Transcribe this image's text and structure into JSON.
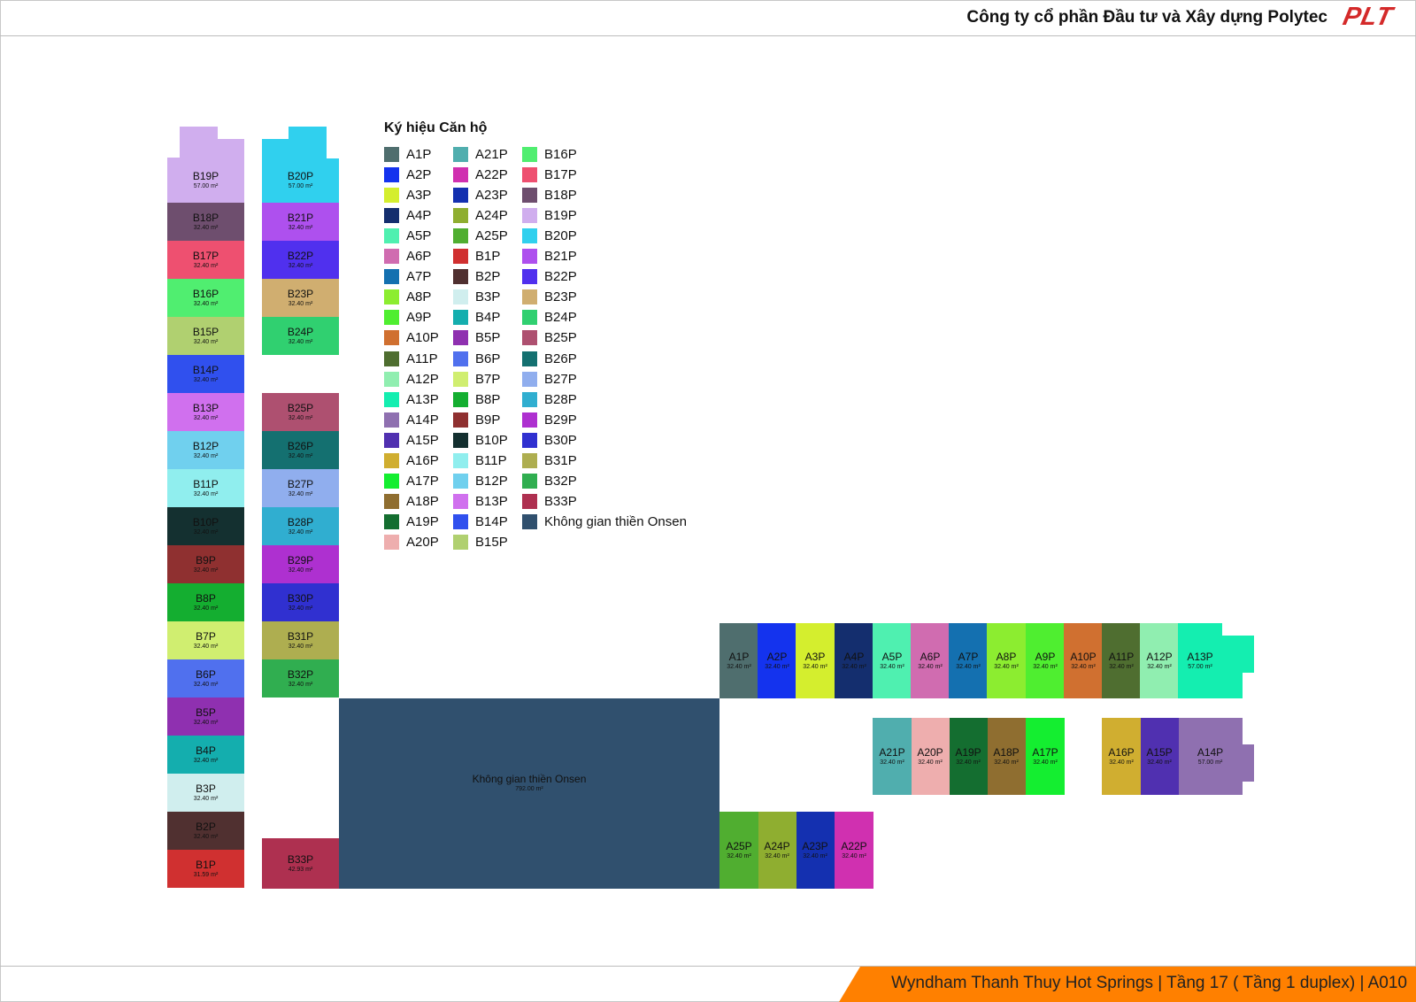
{
  "header": {
    "company": "Công ty cổ phần Đầu tư và Xây dựng Polytec",
    "logo": {
      "text": "PLT",
      "color": "#d42a2a"
    }
  },
  "footer": {
    "text": "Wyndham Thanh Thuy Hot Springs | Tầng 17 ( Tầng 1 duplex) | A010",
    "color": "#ff8000"
  },
  "legend": {
    "title": "Ký hiệu Căn hộ",
    "columns": [
      [
        "A1P",
        "A2P",
        "A3P",
        "A4P",
        "A5P",
        "A6P",
        "A7P",
        "A8P",
        "A9P",
        "A10P",
        "A11P",
        "A12P",
        "A13P",
        "A14P",
        "A15P",
        "A16P",
        "A17P",
        "A18P",
        "A19P",
        "A20P"
      ],
      [
        "A21P",
        "A22P",
        "A23P",
        "A24P",
        "A25P",
        "B1P",
        "B2P",
        "B3P",
        "B4P",
        "B5P",
        "B6P",
        "B7P",
        "B8P",
        "B9P",
        "B10P",
        "B11P",
        "B12P",
        "B13P",
        "B14P",
        "B15P"
      ],
      [
        "B16P",
        "B17P",
        "B18P",
        "B19P",
        "B20P",
        "B21P",
        "B22P",
        "B23P",
        "B24P",
        "B25P",
        "B26P",
        "B27P",
        "B28P",
        "B29P",
        "B30P",
        "B31P",
        "B32P",
        "B33P",
        "Không gian thiền Onsen"
      ]
    ]
  },
  "units": [
    {
      "name": "A1P",
      "area": "32.40 m²",
      "color": "#4f6e6e"
    },
    {
      "name": "A2P",
      "area": "32.40 m²",
      "color": "#1433ee"
    },
    {
      "name": "A3P",
      "area": "32.40 m²",
      "color": "#d4ee2e"
    },
    {
      "name": "A4P",
      "area": "32.40 m²",
      "color": "#142e6e"
    },
    {
      "name": "A5P",
      "area": "32.40 m²",
      "color": "#4ff0b0"
    },
    {
      "name": "A6P",
      "area": "32.40 m²",
      "color": "#d06cb0"
    },
    {
      "name": "A7P",
      "area": "32.40 m²",
      "color": "#1470b0"
    },
    {
      "name": "A8P",
      "area": "32.40 m²",
      "color": "#8ced30"
    },
    {
      "name": "A9P",
      "area": "32.40 m²",
      "color": "#4fee30"
    },
    {
      "name": "A10P",
      "area": "32.40 m²",
      "color": "#d07030"
    },
    {
      "name": "A11P",
      "area": "32.40 m²",
      "color": "#4f6e30"
    },
    {
      "name": "A12P",
      "area": "32.40 m²",
      "color": "#90eeb0"
    },
    {
      "name": "A13P",
      "area": "57.00 m²",
      "color": "#14eeb0"
    },
    {
      "name": "A14P",
      "area": "57.00 m²",
      "color": "#8f70b0"
    },
    {
      "name": "A15P",
      "area": "32.40 m²",
      "color": "#5030b0"
    },
    {
      "name": "A16P",
      "area": "32.40 m²",
      "color": "#d0ae30"
    },
    {
      "name": "A17P",
      "area": "32.40 m²",
      "color": "#14ee30"
    },
    {
      "name": "A18P",
      "area": "32.40 m²",
      "color": "#8f6e30"
    },
    {
      "name": "A19P",
      "area": "32.40 m²",
      "color": "#146e30"
    },
    {
      "name": "A20P",
      "area": "32.40 m²",
      "color": "#eeaeae"
    },
    {
      "name": "A21P",
      "area": "32.40 m²",
      "color": "#50aeae"
    },
    {
      "name": "A22P",
      "area": "32.40 m²",
      "color": "#d030b0"
    },
    {
      "name": "A23P",
      "area": "32.40 m²",
      "color": "#1430b0"
    },
    {
      "name": "A24P",
      "area": "32.40 m²",
      "color": "#8fae30"
    },
    {
      "name": "A25P",
      "area": "32.40 m²",
      "color": "#50ae30"
    },
    {
      "name": "B1P",
      "area": "31.59 m²",
      "color": "#d03030"
    },
    {
      "name": "B2P",
      "area": "32.40 m²",
      "color": "#503030"
    },
    {
      "name": "B3P",
      "area": "32.40 m²",
      "color": "#d0eeee"
    },
    {
      "name": "B4P",
      "area": "32.40 m²",
      "color": "#14aeae"
    },
    {
      "name": "B5P",
      "area": "32.40 m²",
      "color": "#8f30b0"
    },
    {
      "name": "B6P",
      "area": "32.40 m²",
      "color": "#5070ee"
    },
    {
      "name": "B7P",
      "area": "32.40 m²",
      "color": "#d0ee70"
    },
    {
      "name": "B8P",
      "area": "32.40 m²",
      "color": "#14ae30"
    },
    {
      "name": "B9P",
      "area": "32.40 m²",
      "color": "#8f3030"
    },
    {
      "name": "B10P",
      "area": "32.40 m²",
      "color": "#143030"
    },
    {
      "name": "B11P",
      "area": "32.40 m²",
      "color": "#90eeee"
    },
    {
      "name": "B12P",
      "area": "32.40 m²",
      "color": "#70d0ee"
    },
    {
      "name": "B13P",
      "area": "32.40 m²",
      "color": "#d070ee"
    },
    {
      "name": "B14P",
      "area": "32.40 m²",
      "color": "#3050ee"
    },
    {
      "name": "B15P",
      "area": "32.40 m²",
      "color": "#b0d070"
    },
    {
      "name": "B16P",
      "area": "32.40 m²",
      "color": "#50ee70"
    },
    {
      "name": "B17P",
      "area": "32.40 m²",
      "color": "#ee5070"
    },
    {
      "name": "B18P",
      "area": "32.40 m²",
      "color": "#6e4e6e"
    },
    {
      "name": "B19P",
      "area": "57.00 m²",
      "color": "#d0aeee"
    },
    {
      "name": "B20P",
      "area": "57.00 m²",
      "color": "#30d0ee"
    },
    {
      "name": "B21P",
      "area": "32.40 m²",
      "color": "#ae50ee"
    },
    {
      "name": "B22P",
      "area": "32.40 m²",
      "color": "#5030ee"
    },
    {
      "name": "B23P",
      "area": "32.40 m²",
      "color": "#d0ae70"
    },
    {
      "name": "B24P",
      "area": "32.40 m²",
      "color": "#30d070"
    },
    {
      "name": "B25P",
      "area": "32.40 m²",
      "color": "#ae5070"
    },
    {
      "name": "B26P",
      "area": "32.40 m²",
      "color": "#147070"
    },
    {
      "name": "B27P",
      "area": "32.40 m²",
      "color": "#90aeee"
    },
    {
      "name": "B28P",
      "area": "32.40 m²",
      "color": "#30aed0"
    },
    {
      "name": "B29P",
      "area": "32.40 m²",
      "color": "#ae30d0"
    },
    {
      "name": "B30P",
      "area": "32.40 m²",
      "color": "#3030d0"
    },
    {
      "name": "B31P",
      "area": "32.40 m²",
      "color": "#aeae50"
    },
    {
      "name": "B32P",
      "area": "32.40 m²",
      "color": "#30ae50"
    },
    {
      "name": "B33P",
      "area": "42.93 m²",
      "color": "#ae3050"
    },
    {
      "name": "Không gian thiền Onsen",
      "area": "792.00 m²",
      "color": "#30506e"
    }
  ]
}
